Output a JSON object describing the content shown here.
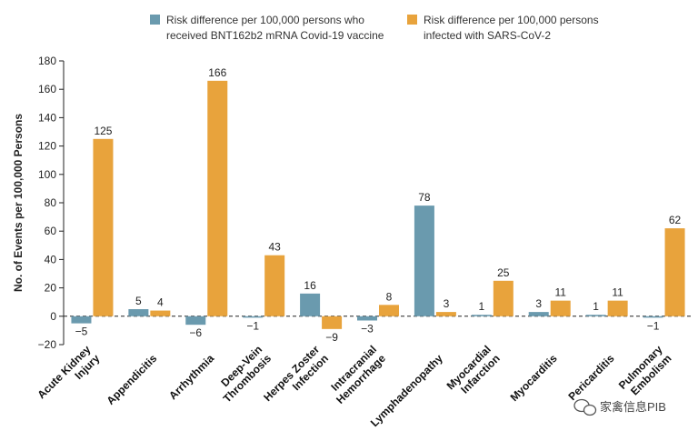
{
  "chart_data": {
    "type": "bar",
    "ylabel": "No. of Events per 100,000 Persons",
    "ylim": [
      -20,
      180
    ],
    "yticks": [
      -20,
      0,
      20,
      40,
      60,
      80,
      100,
      120,
      140,
      160,
      180
    ],
    "categories": [
      [
        "Acute Kidney",
        "Injury"
      ],
      [
        "Appendicitis"
      ],
      [
        "Arrhythmia"
      ],
      [
        "Deep-Vein",
        "Thrombosis"
      ],
      [
        "Herpes Zoster",
        "Infection"
      ],
      [
        "Intracranial",
        "Hemorrhage"
      ],
      [
        "Lymphadenopathy"
      ],
      [
        "Myocardial",
        "Infarction"
      ],
      [
        "Myocarditis"
      ],
      [
        "Pericarditis"
      ],
      [
        "Pulmonary",
        "Embolism"
      ]
    ],
    "series": [
      {
        "name": "Risk difference per 100,000 persons who received BNT162b2 mRNA Covid-19 vaccine",
        "legend_lines": [
          "Risk difference per 100,000 persons who",
          "received BNT162b2 mRNA Covid-19 vaccine"
        ],
        "color": "#6a9aae",
        "values": [
          -5,
          5,
          -6,
          -1,
          16,
          -3,
          78,
          1,
          3,
          1,
          -1
        ],
        "labels": [
          "−5",
          "5",
          "−6",
          "−1",
          "16",
          "−3",
          "78",
          "1",
          "3",
          "1",
          "−1"
        ]
      },
      {
        "name": "Risk difference per 100,000 persons infected with SARS-CoV-2",
        "legend_lines": [
          "Risk difference per 100,000 persons",
          "infected with SARS-CoV-2"
        ],
        "color": "#e8a33c",
        "values": [
          125,
          4,
          166,
          43,
          -9,
          8,
          3,
          25,
          11,
          11,
          62
        ],
        "labels": [
          "125",
          "4",
          "166",
          "43",
          "−9",
          "8",
          "3",
          "25",
          "11",
          "11",
          "62"
        ]
      }
    ]
  },
  "watermark": "家禽信息PIB"
}
